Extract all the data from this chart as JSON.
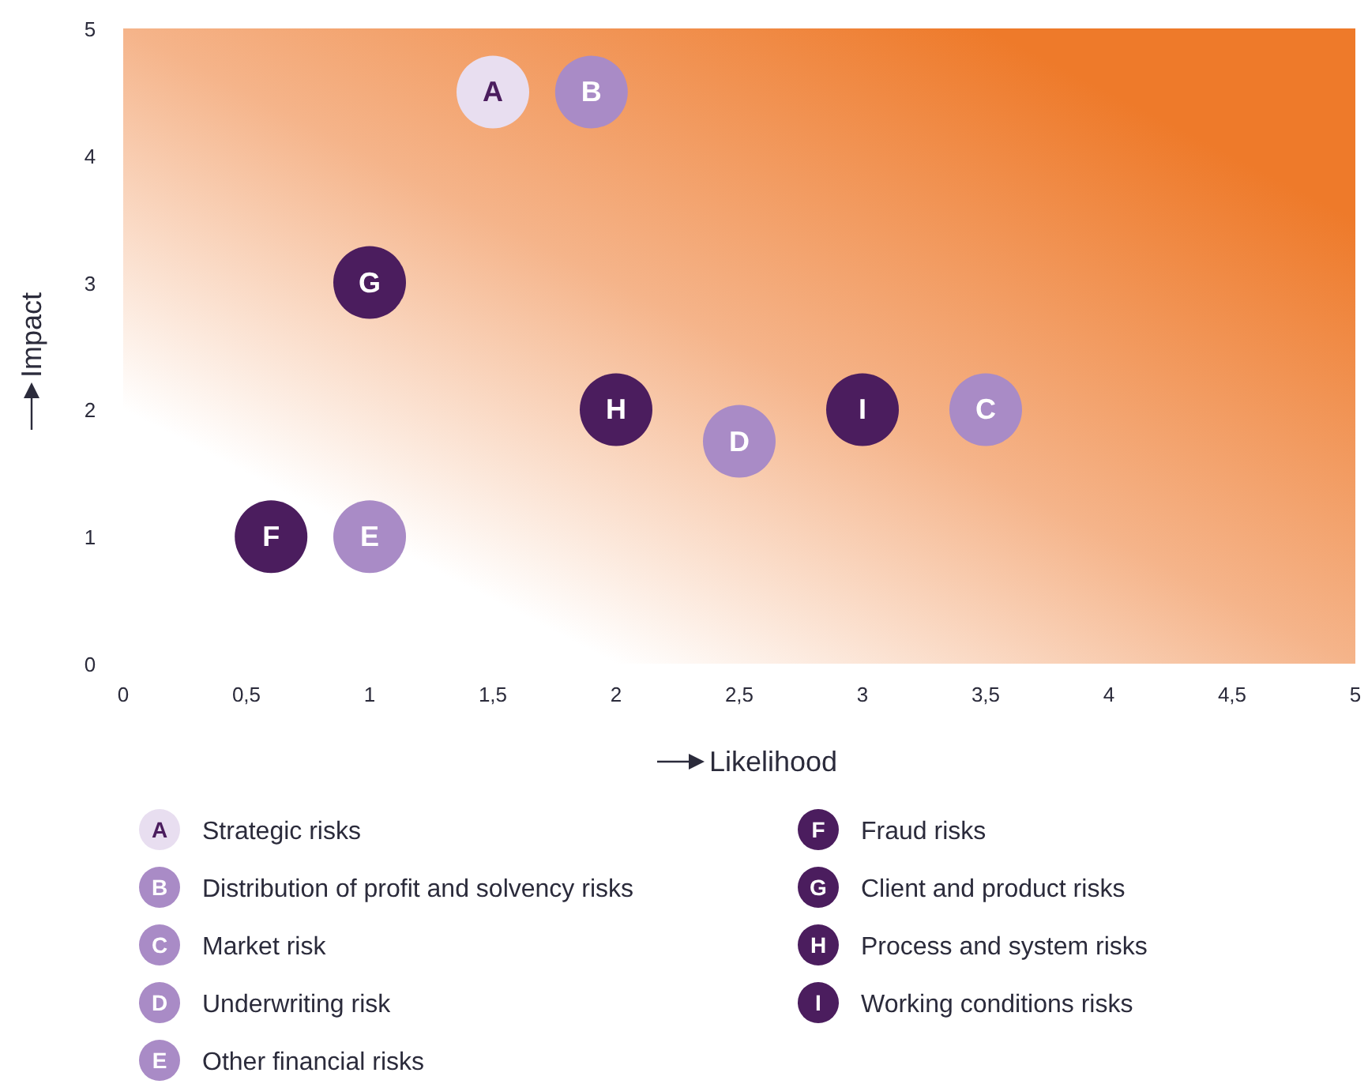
{
  "chart_data": {
    "type": "scatter",
    "xlabel": "Likelihood",
    "ylabel": "Impact",
    "xlim": [
      0,
      5
    ],
    "ylim": [
      0,
      5
    ],
    "xticks": [
      0,
      {
        "value": 0.5,
        "label": "0,5"
      },
      1,
      {
        "value": 1.5,
        "label": "1,5"
      },
      2,
      {
        "value": 2.5,
        "label": "2,5"
      },
      3,
      {
        "value": 3.5,
        "label": "3,5"
      },
      4,
      {
        "value": 4.5,
        "label": "4,5"
      },
      5
    ],
    "yticks": [
      0,
      1,
      2,
      3,
      4,
      5
    ],
    "grid": false,
    "legend": "bottom",
    "marker": "circle",
    "series": [
      {
        "name": "Strategic risks",
        "color": "#e8def0",
        "x": [
          1.5
        ],
        "values": [
          4.5
        ],
        "value_labels": [
          "A"
        ]
      },
      {
        "name": "Distribution of profit and solvency risks",
        "color": "#a98bc6",
        "x": [
          1.9
        ],
        "values": [
          4.5
        ],
        "value_labels": [
          "B"
        ]
      },
      {
        "name": "Market risk",
        "color": "#a98bc6",
        "x": [
          3.5
        ],
        "values": [
          2
        ],
        "value_labels": [
          "C"
        ]
      },
      {
        "name": "Underwriting risk",
        "color": "#a98bc6",
        "x": [
          2.5
        ],
        "values": [
          1.75
        ],
        "value_labels": [
          "D"
        ]
      },
      {
        "name": "Other financial risks",
        "color": "#a98bc6",
        "x": [
          1
        ],
        "values": [
          1
        ],
        "value_labels": [
          "E"
        ]
      },
      {
        "name": "Fraud risks",
        "color": "#4b1d5e",
        "x": [
          0.6
        ],
        "values": [
          1
        ],
        "value_labels": [
          "F"
        ]
      },
      {
        "name": "Client and product risks",
        "color": "#4b1d5e",
        "x": [
          1
        ],
        "values": [
          3
        ],
        "value_labels": [
          "G"
        ]
      },
      {
        "name": "Process and system risks",
        "color": "#4b1d5e",
        "x": [
          2
        ],
        "values": [
          2
        ],
        "value_labels": [
          "H"
        ]
      },
      {
        "name": "Working conditions risks",
        "color": "#4b1d5e",
        "x": [
          3
        ],
        "values": [
          2
        ],
        "value_labels": [
          "I"
        ]
      }
    ]
  }
}
